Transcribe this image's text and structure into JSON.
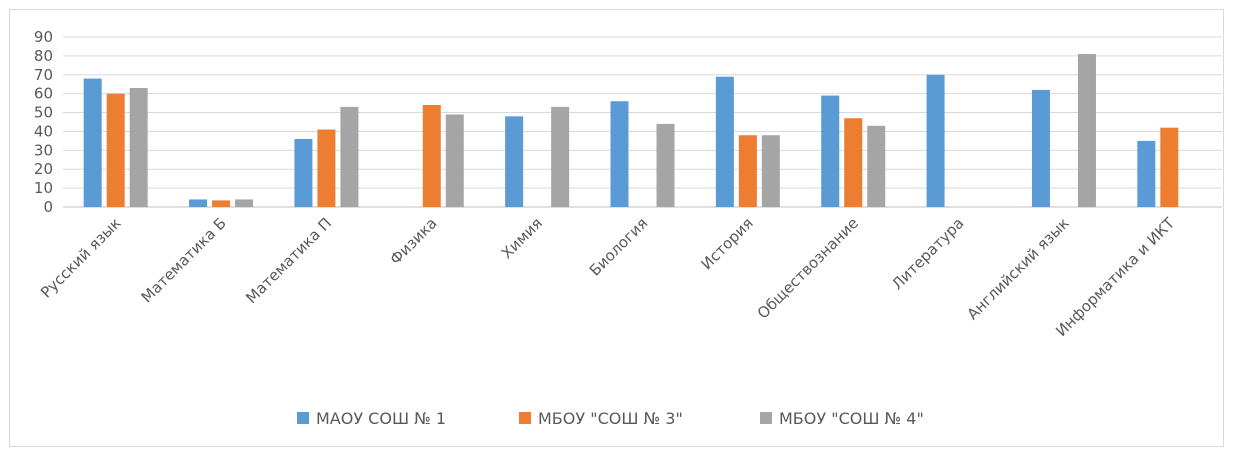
{
  "chart_data": {
    "type": "bar",
    "categories": [
      "Русский язык",
      "Математика Б",
      "Математика П",
      "Физика",
      "Химия",
      "Биология",
      "История",
      "Обществознание",
      "Литература",
      "Английский язык",
      "Информатика и ИКТ"
    ],
    "series": [
      {
        "name": "МАОУ СОШ № 1",
        "color": "#5b9bd5",
        "values": [
          68,
          4,
          36,
          null,
          48,
          56,
          69,
          59,
          70,
          62,
          35
        ]
      },
      {
        "name": "МБОУ \"СОШ № 3\"",
        "color": "#ed7d31",
        "values": [
          60,
          3.5,
          41,
          54,
          null,
          null,
          38,
          47,
          null,
          null,
          42
        ]
      },
      {
        "name": "МБОУ \"СОШ № 4\"",
        "color": "#a5a5a5",
        "values": [
          63,
          4,
          53,
          49,
          53,
          44,
          38,
          43,
          null,
          81,
          null
        ]
      }
    ],
    "ylim": [
      0,
      90
    ],
    "yticks": [
      0,
      10,
      20,
      30,
      40,
      50,
      60,
      70,
      80,
      90
    ],
    "grid": true,
    "legend_position": "bottom",
    "title": "",
    "xlabel": "",
    "ylabel": ""
  },
  "colors": {
    "grid": "#d9d9d9",
    "axis": "#bfbfbf",
    "text": "#595959"
  }
}
